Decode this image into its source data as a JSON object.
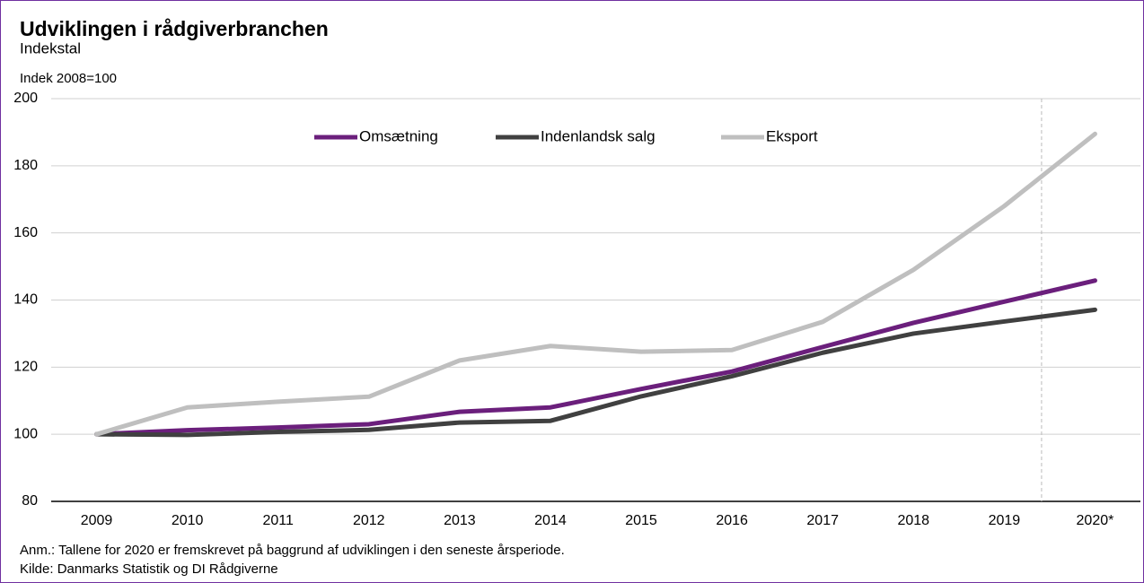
{
  "chart_data": {
    "type": "line",
    "title": "Udviklingen i rådgiverbranchen",
    "subtitle": "Indekstal",
    "y_axis_label": "Indek 2008=100",
    "categories": [
      "2009",
      "2010",
      "2011",
      "2012",
      "2013",
      "2014",
      "2015",
      "2016",
      "2017",
      "2018",
      "2019",
      "2020*"
    ],
    "series": [
      {
        "name": "Omsætning",
        "color": "#6b1f7c",
        "values": [
          100,
          101.2,
          102,
          103,
          106.7,
          108,
          113.5,
          118.7,
          126,
          133.2,
          139.5,
          145.8
        ]
      },
      {
        "name": "Indenlandsk salg",
        "color": "#404040",
        "values": [
          100,
          99.8,
          100.7,
          101.3,
          103.5,
          104,
          111.3,
          117.3,
          124.3,
          130,
          133.6,
          137.1
        ]
      },
      {
        "name": "Eksport",
        "color": "#bfbfbf",
        "values": [
          100,
          108,
          109.7,
          111.2,
          122,
          126.3,
          124.6,
          125.1,
          133.5,
          149,
          168,
          189.5
        ]
      }
    ],
    "ylim": [
      80,
      200
    ],
    "yticks": [
      80,
      100,
      120,
      140,
      160,
      180,
      200
    ],
    "grid": true,
    "legend": "top",
    "notes": [
      "Anm.: Tallene for 2020 er fremskrevet på baggrund af udviklingen i den seneste årsperiode.",
      "Kilde: Danmarks Statistik og DI Rådgiverne"
    ]
  }
}
